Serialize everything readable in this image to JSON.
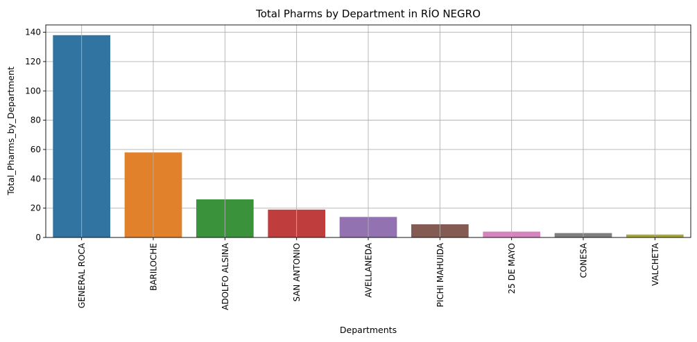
{
  "chart_data": {
    "type": "bar",
    "title": "Total Pharms by Department in RÍO NEGRO",
    "xlabel": "Departments",
    "ylabel": "Total_Pharms_by_Department",
    "ylim": [
      0,
      145
    ],
    "yticks": [
      0,
      20,
      40,
      60,
      80,
      100,
      120,
      140
    ],
    "grid": true,
    "categories": [
      "GENERAL ROCA",
      "BARILOCHE",
      "ADOLFO ALSINA",
      "SAN ANTONIO",
      "AVELLANEDA",
      "PICHI MAHUIDA",
      "25 DE MAYO",
      "CONESA",
      "VALCHETA"
    ],
    "values": [
      138,
      58,
      26,
      19,
      14,
      9,
      4,
      3,
      2
    ],
    "colors": [
      "#3274a1",
      "#e1812c",
      "#3a923a",
      "#c03d3e",
      "#9372b2",
      "#845b53",
      "#d684bd",
      "#7f7f7f",
      "#a9aa35"
    ]
  }
}
